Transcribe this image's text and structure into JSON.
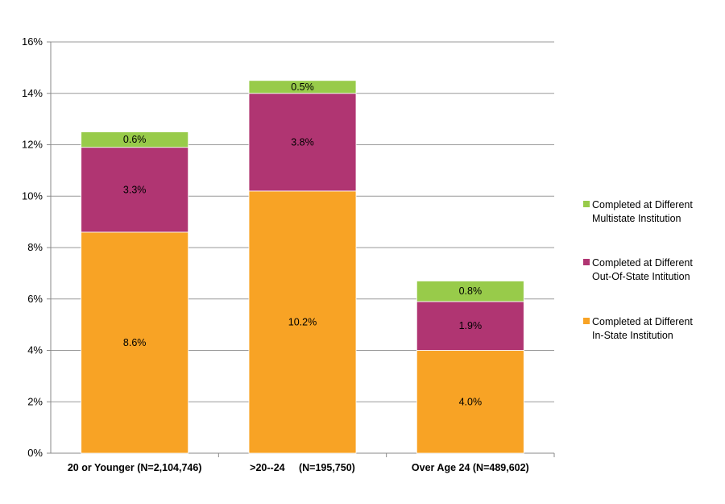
{
  "chart_data": {
    "type": "bar",
    "stacked": true,
    "title": "",
    "xlabel": "",
    "ylabel": "",
    "ylim": [
      0,
      16
    ],
    "yticks": [
      "0%",
      "2%",
      "4%",
      "6%",
      "8%",
      "10%",
      "12%",
      "14%",
      "16%"
    ],
    "grid": true,
    "legend_position": "right",
    "categories": [
      "20 or Younger (N=2,104,746)",
      ">20--24     (N=195,750)",
      "Over Age 24 (N=489,602)"
    ],
    "series": [
      {
        "name": "Completed at Different In-State Institution",
        "legend_lines": [
          "Completed at Different",
          "In-State Institution"
        ],
        "color": "#F8A325",
        "values": [
          8.6,
          10.2,
          4.0
        ],
        "labels": [
          "8.6%",
          "10.2%",
          "4.0%"
        ]
      },
      {
        "name": "Completed at Different Out-Of-State Intitution",
        "legend_lines": [
          "Completed at Different",
          "Out-Of-State Intitution"
        ],
        "color": "#B03572",
        "values": [
          3.3,
          3.8,
          1.9
        ],
        "labels": [
          "3.3%",
          "3.8%",
          "1.9%"
        ]
      },
      {
        "name": "Completed at Different Multistate Institution",
        "legend_lines": [
          "Completed at Different",
          "Multistate Institution"
        ],
        "color": "#98CB4A",
        "values": [
          0.6,
          0.5,
          0.8
        ],
        "labels": [
          "0.6%",
          "0.5%",
          "0.8%"
        ]
      }
    ]
  }
}
